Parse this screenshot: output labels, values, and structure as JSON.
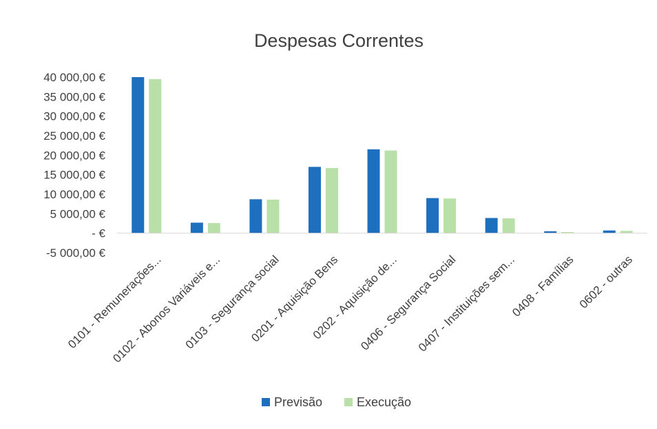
{
  "chart_data": {
    "type": "bar",
    "title": "Despesas Correntes",
    "xlabel": "",
    "ylabel": "",
    "categories": [
      "0101 - Remunerações...",
      "0102 - Abonos Variáveis e...",
      "0103 - Segurança social",
      "0201 - Aquisição Bens",
      "0202 - Aquisição de...",
      "0406 - Segurança Social",
      "0407 - Instituições sem...",
      "0408 - Famílias",
      "0602 - outras"
    ],
    "series": [
      {
        "name": "Previsão",
        "color": "#1f6fbf",
        "values": [
          40000,
          2700,
          8700,
          17000,
          21500,
          9000,
          3900,
          500,
          700
        ]
      },
      {
        "name": "Execução",
        "color": "#b8e0a8",
        "values": [
          39500,
          2600,
          8600,
          16700,
          21200,
          8900,
          3800,
          300,
          600
        ]
      }
    ],
    "ylim": [
      -5000,
      40000
    ],
    "yticks": [
      40000,
      35000,
      30000,
      25000,
      20000,
      15000,
      10000,
      5000,
      0,
      -5000
    ],
    "ytick_labels": [
      "40 000,00 €",
      "35 000,00 €",
      "30 000,00 €",
      "25 000,00 €",
      "20 000,00 €",
      "15 000,00 €",
      "10 000,00 €",
      "5 000,00 €",
      "-   €",
      "-5 000,00 €"
    ],
    "grid": false,
    "legend_position": "bottom"
  }
}
